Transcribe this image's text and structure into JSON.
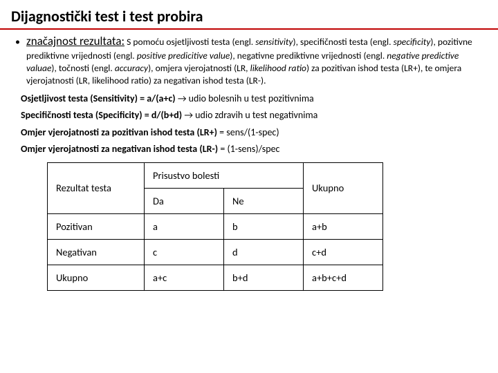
{
  "title": "Dijagnostički test i test probira",
  "bullet_lead": "značajnost rezultata:",
  "bullet_body_parts": [
    " S pomoću osjetljivosti testa (engl. ",
    "sensitivity",
    "), specifičnosti testa (engl. ",
    "specificity",
    "), pozitivne prediktivne vrijednosti (engl. ",
    "positive predicitive value",
    "), negativne prediktivne vrijednosti (engl. ",
    "negative predictive valuae",
    "), točnosti (engl. ",
    "accuracy",
    "), omjera vjerojatnosti (LR, ",
    "likelihood ratio",
    ") za pozitivan ishod testa (LR+), te omjera vjerojatnosti (LR, likelihood ratio) za negativan ishod testa (LR-)."
  ],
  "lines": {
    "l1_b": "Osjetljivost testa (Sensitivity) = a/(a+c) ",
    "l1_r": "→ udio bolesnih u test pozitivnima",
    "l2_b": "Specifičnosti testa (Specificity) = d/(b+d) ",
    "l2_r": "→ udio zdravih u test negativnima",
    "l3_b": "Omjer vjerojatnosti za pozitivan ishod testa (LR+) ",
    "l3_r": "= sens/(1-spec)",
    "l4_b": "Omjer vjerojatnosti za negativan ishod testa (LR-) ",
    "l4_r": "= (1-sens)/spec"
  },
  "table": {
    "columns": [
      "Rezultat testa",
      "Prisustvo bolesti",
      "Ukupno"
    ],
    "subcols": [
      "Da",
      "Ne"
    ],
    "rows": [
      [
        "Pozitivan",
        "a",
        "b",
        "a+b"
      ],
      [
        "Negativan",
        "c",
        "d",
        "c+d"
      ],
      [
        "Ukupno",
        "a+c",
        "b+d",
        "a+b+c+d"
      ]
    ],
    "border_color": "#000000",
    "background": "#ffffff",
    "font_size": 14.5
  },
  "colors": {
    "title_underline": "#c00000",
    "text": "#000000",
    "background": "#ffffff"
  }
}
